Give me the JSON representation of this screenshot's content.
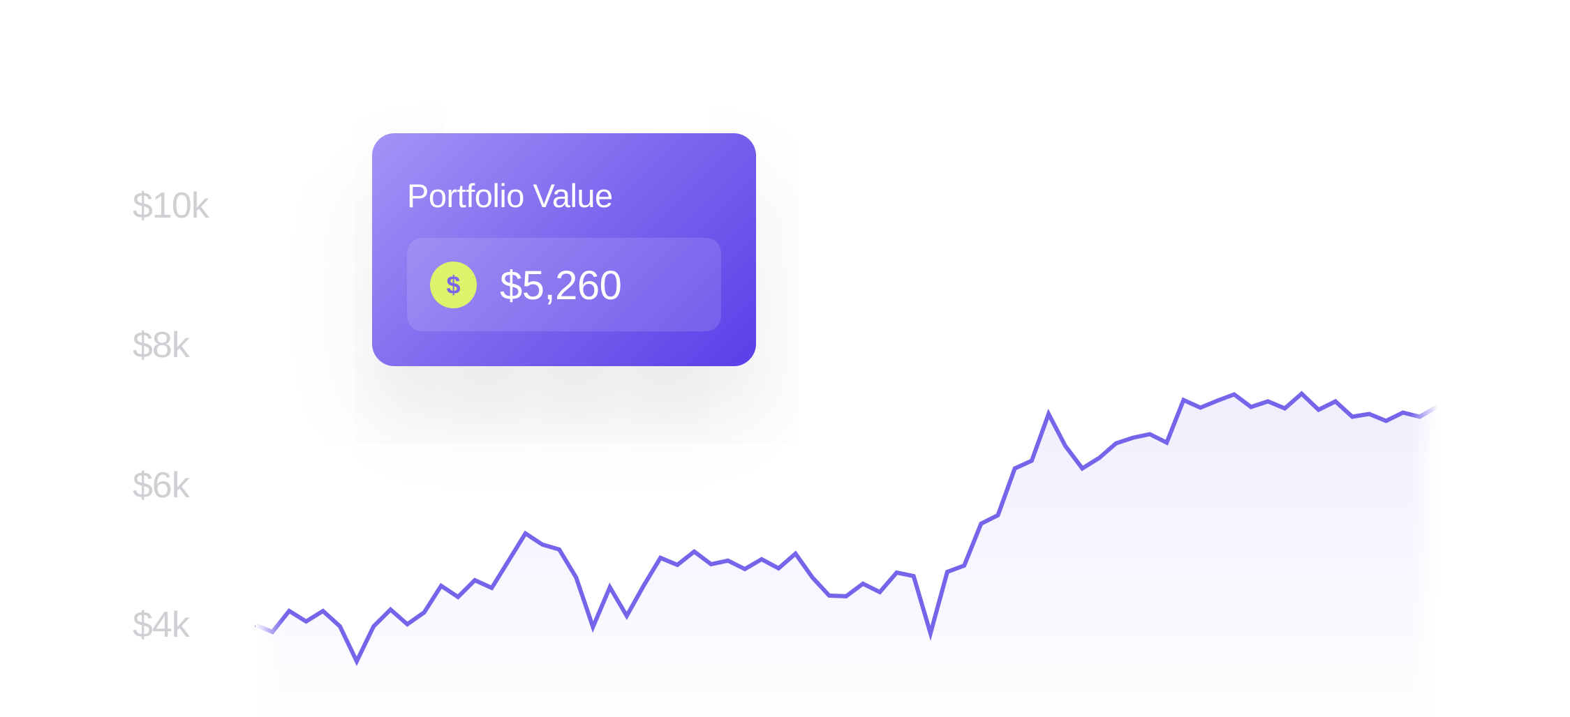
{
  "card": {
    "title": "Portfolio Value",
    "value": "$5,260",
    "coin_symbol": "$",
    "icon": "dollar-coin-icon"
  },
  "colors": {
    "line": "#7565ea",
    "fill": "#f1eefd",
    "card_start": "#a394f6",
    "card_end": "#5a3fe8",
    "coin": "#dcf46b",
    "tick_label": "#cfcfd4"
  },
  "chart_data": {
    "type": "line",
    "title": "",
    "xlabel": "",
    "ylabel": "",
    "ylim": [
      3200,
      11000
    ],
    "y_ticks": [
      {
        "value": 10000,
        "label": "$10k"
      },
      {
        "value": 8000,
        "label": "$8k"
      },
      {
        "value": 6000,
        "label": "$6k"
      },
      {
        "value": 4000,
        "label": "$4k"
      }
    ],
    "grid": false,
    "legend": "none",
    "series": [
      {
        "values": [
          4000,
          3900,
          4200,
          4050,
          4200,
          3980,
          3480,
          3980,
          4220,
          4010,
          4180,
          4560,
          4400,
          4640,
          4530,
          4920,
          5310,
          5150,
          5080,
          4680,
          3970,
          4540,
          4130,
          4560,
          4960,
          4860,
          5050,
          4870,
          4920,
          4800,
          4940,
          4810,
          5020,
          4680,
          4420,
          4410,
          4590,
          4470,
          4750,
          4700,
          3880,
          4760,
          4850,
          5450,
          5570,
          6240,
          6350,
          7020,
          6560,
          6240,
          6390,
          6600,
          6680,
          6730,
          6610,
          7220,
          7110,
          7210,
          7300,
          7120,
          7200,
          7100,
          7310,
          7080,
          7200,
          6980,
          7020,
          6920,
          7040,
          6980,
          7120
        ]
      }
    ]
  }
}
